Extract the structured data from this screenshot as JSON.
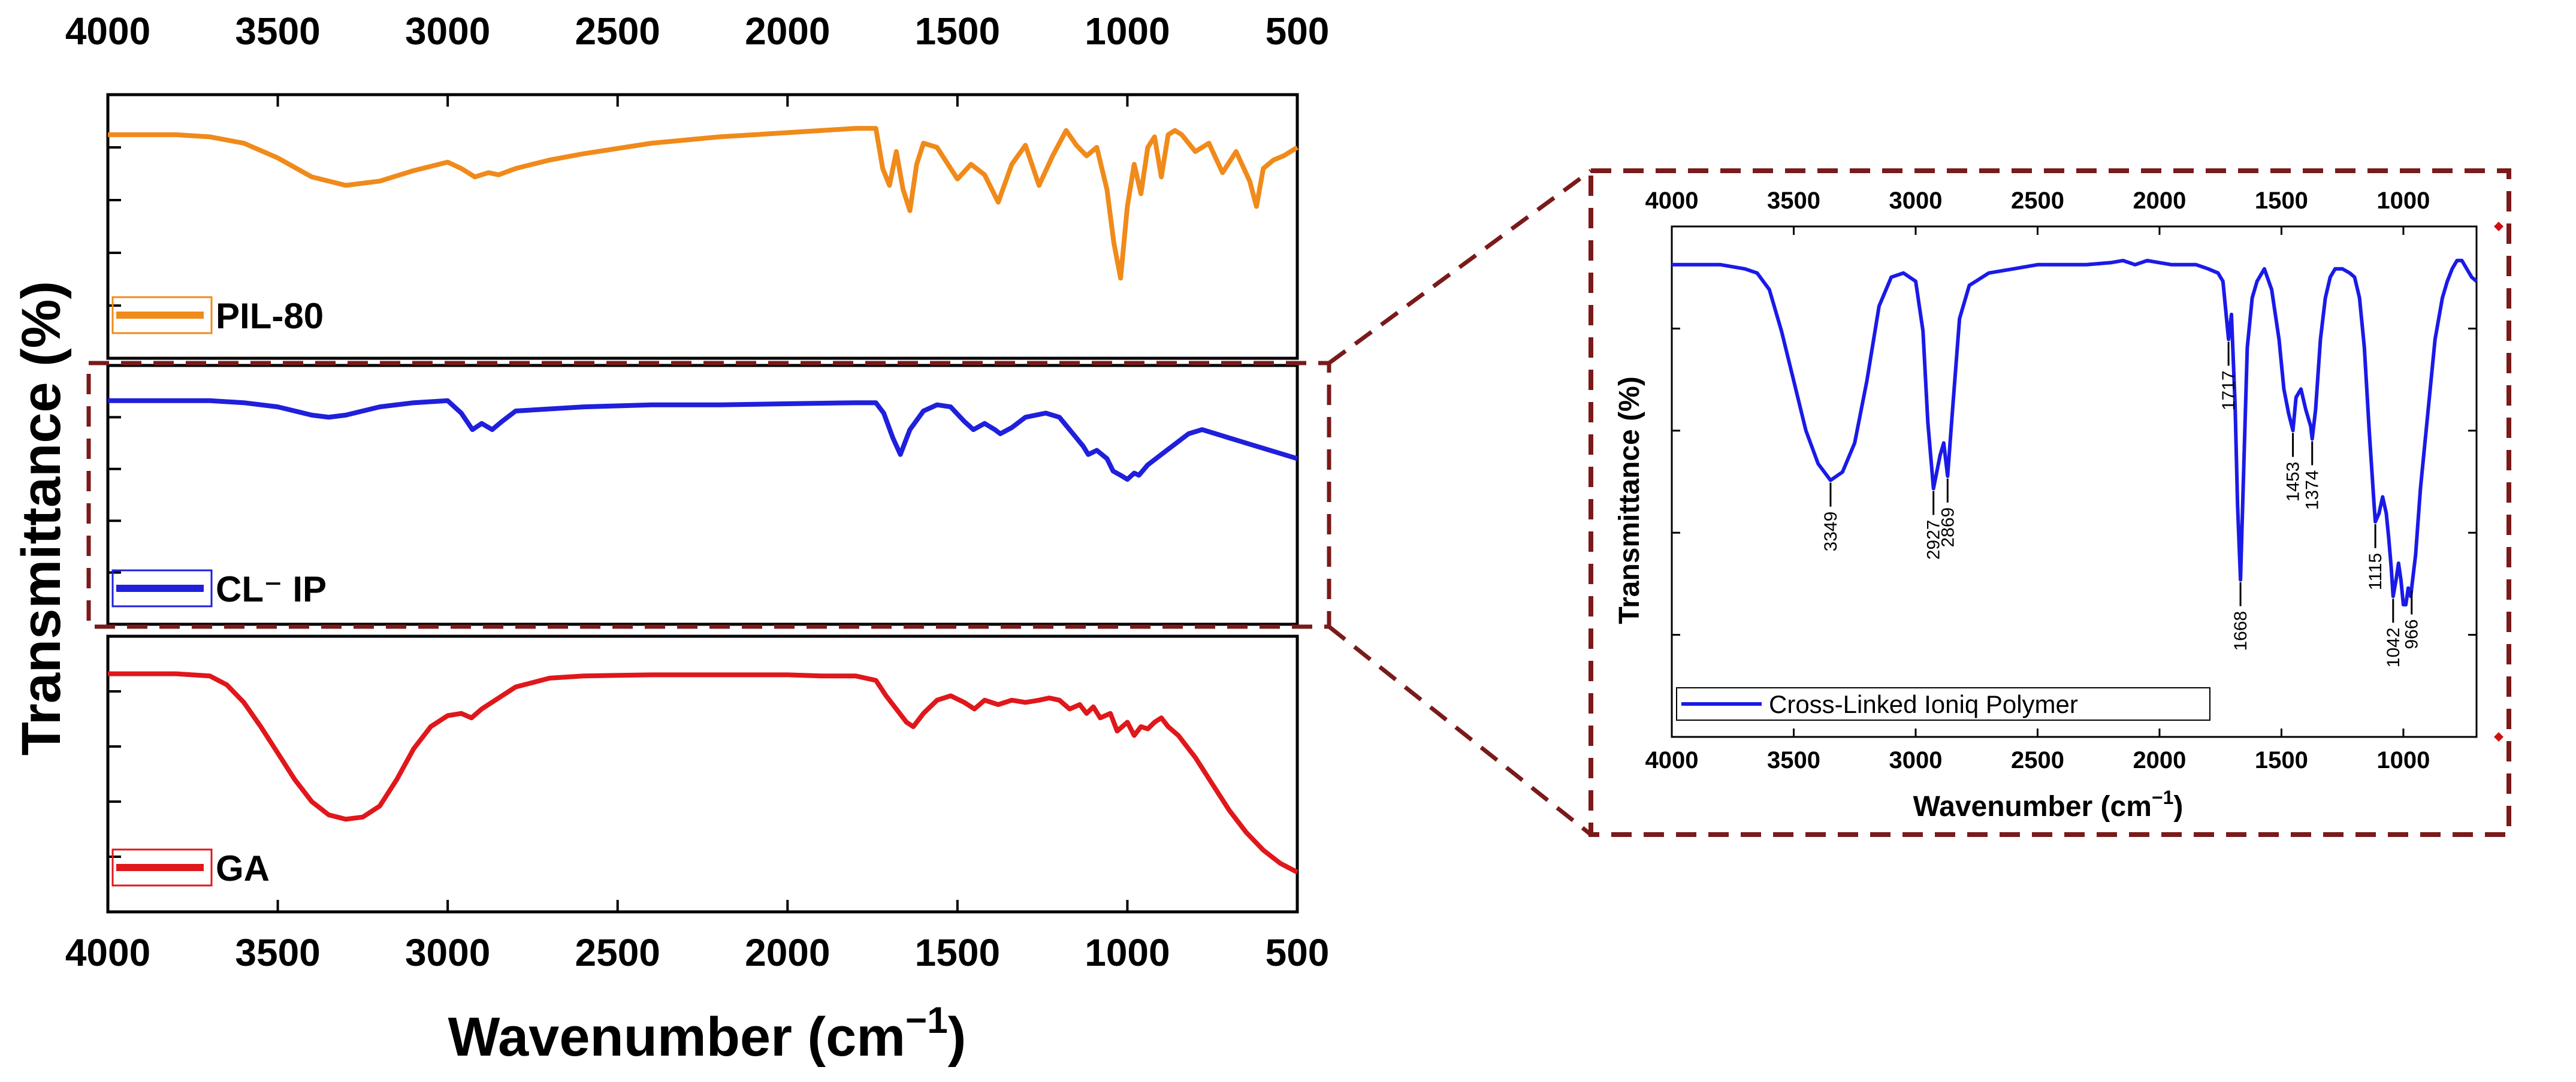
{
  "figure": {
    "main_ylabel": "Transmittance (%)",
    "main_xlabel": "Wavenumber (cm",
    "main_xlabel_sup": "−1",
    "main_xlabel_close": ")",
    "inset_ylabel": "Transmittance (%)",
    "inset_xlabel": "Wavenumber (cm",
    "inset_xlabel_sup": "−1",
    "inset_xlabel_close": ")",
    "colors": {
      "pil80": "#f08a1a",
      "clip": "#1f1fdc",
      "ga": "#e0171b",
      "highlight": "#7a1a1a",
      "inset_line": "#1a1ae8"
    }
  },
  "chart_data": [
    {
      "type": "line",
      "title": "",
      "xlabel": "Wavenumber (cm−1)",
      "ylabel": "Transmittance (%)",
      "xlim": [
        4000,
        500
      ],
      "x_ticks": [
        "4000",
        "3500",
        "3000",
        "2500",
        "2000",
        "1500",
        "1000",
        "500"
      ],
      "series": [
        {
          "name": "PIL-80",
          "legend": "PIL-80",
          "color": "#f08a1a",
          "x": [
            4000,
            3900,
            3800,
            3700,
            3600,
            3500,
            3400,
            3300,
            3200,
            3100,
            3000,
            2960,
            2920,
            2880,
            2850,
            2800,
            2700,
            2600,
            2400,
            2200,
            2000,
            1800,
            1740,
            1720,
            1700,
            1680,
            1660,
            1640,
            1620,
            1600,
            1560,
            1500,
            1460,
            1420,
            1380,
            1340,
            1300,
            1260,
            1220,
            1180,
            1150,
            1120,
            1090,
            1060,
            1040,
            1020,
            1000,
            980,
            960,
            940,
            920,
            900,
            880,
            860,
            840,
            800,
            760,
            720,
            680,
            640,
            620,
            600,
            570,
            540,
            500
          ],
          "y": [
            96,
            96,
            96,
            95,
            92,
            85,
            76,
            72,
            74,
            79,
            83,
            80,
            76,
            78,
            77,
            80,
            84,
            87,
            92,
            95,
            97,
            99,
            99,
            80,
            72,
            88,
            70,
            60,
            82,
            92,
            90,
            75,
            82,
            77,
            64,
            82,
            91,
            72,
            86,
            98,
            91,
            86,
            90,
            70,
            45,
            28,
            62,
            82,
            68,
            90,
            95,
            76,
            96,
            98,
            96,
            88,
            92,
            78,
            88,
            74,
            62,
            80,
            84,
            86,
            90
          ]
        },
        {
          "name": "CL⁻ IP",
          "legend": "CL⁻ IP",
          "color": "#1f1fdc",
          "x": [
            4000,
            3900,
            3800,
            3700,
            3600,
            3500,
            3400,
            3350,
            3300,
            3200,
            3100,
            3000,
            2960,
            2927,
            2900,
            2869,
            2840,
            2800,
            2600,
            2400,
            2200,
            2000,
            1800,
            1740,
            1717,
            1690,
            1668,
            1640,
            1600,
            1560,
            1520,
            1480,
            1453,
            1420,
            1390,
            1374,
            1340,
            1300,
            1240,
            1200,
            1160,
            1130,
            1115,
            1090,
            1060,
            1042,
            1020,
            1000,
            980,
            966,
            940,
            900,
            860,
            820,
            780,
            740,
            700,
            660,
            620,
            580,
            540,
            500
          ],
          "y": [
            98,
            98,
            98,
            98,
            97,
            95,
            91,
            90,
            91,
            95,
            97,
            98,
            92,
            84,
            87,
            84,
            88,
            93,
            95,
            96,
            96,
            96.5,
            97,
            97,
            92,
            80,
            72,
            84,
            93,
            96,
            95,
            88,
            84,
            87,
            84,
            82,
            85,
            90,
            92,
            90,
            82,
            76,
            72,
            74,
            70,
            64,
            62,
            60,
            63,
            62,
            67,
            72,
            77,
            82,
            84,
            82,
            80,
            78,
            76,
            74,
            72,
            70
          ]
        },
        {
          "name": "GA",
          "legend": "GA",
          "color": "#e0171b",
          "x": [
            4000,
            3900,
            3800,
            3700,
            3650,
            3600,
            3550,
            3500,
            3450,
            3400,
            3350,
            3300,
            3250,
            3200,
            3150,
            3100,
            3050,
            3000,
            2960,
            2930,
            2900,
            2850,
            2800,
            2700,
            2600,
            2400,
            2200,
            2000,
            1900,
            1800,
            1740,
            1710,
            1680,
            1650,
            1630,
            1600,
            1560,
            1520,
            1480,
            1450,
            1420,
            1380,
            1340,
            1300,
            1260,
            1230,
            1200,
            1170,
            1140,
            1120,
            1100,
            1080,
            1050,
            1030,
            1000,
            980,
            960,
            940,
            920,
            900,
            880,
            850,
            800,
            750,
            700,
            650,
            600,
            550,
            500
          ],
          "y": [
            98,
            98,
            98,
            97,
            93,
            85,
            74,
            62,
            50,
            40,
            34,
            32,
            33,
            38,
            50,
            64,
            74,
            79,
            80,
            78,
            82,
            87,
            92,
            96,
            97,
            97.5,
            97.5,
            97.5,
            97,
            97,
            95,
            88,
            82,
            76,
            74,
            80,
            86,
            88,
            85,
            82,
            86,
            84,
            86,
            85,
            86,
            87,
            86,
            82,
            84,
            80,
            83,
            78,
            80,
            72,
            76,
            70,
            74,
            73,
            76,
            78,
            74,
            70,
            60,
            48,
            36,
            26,
            18,
            12,
            8
          ]
        }
      ]
    },
    {
      "type": "line",
      "title": "",
      "xlabel": "Wavenumber (cm−1)",
      "ylabel": "Transmittance (%)",
      "xlim": [
        4000,
        700
      ],
      "x_ticks": [
        "4000",
        "3500",
        "3000",
        "2500",
        "2000",
        "1500",
        "1000"
      ],
      "series": [
        {
          "name": "Cross-Linked Ioniq Polymer",
          "legend": "Cross-Linked Ioniq Polymer",
          "color": "#1a1ae8",
          "x": [
            4000,
            3900,
            3800,
            3700,
            3650,
            3600,
            3550,
            3500,
            3450,
            3400,
            3349,
            3300,
            3250,
            3200,
            3150,
            3100,
            3050,
            3000,
            2970,
            2950,
            2927,
            2900,
            2885,
            2869,
            2850,
            2820,
            2780,
            2700,
            2600,
            2500,
            2400,
            2300,
            2200,
            2150,
            2100,
            2050,
            2000,
            1950,
            1900,
            1850,
            1800,
            1760,
            1740,
            1730,
            1717,
            1705,
            1690,
            1680,
            1668,
            1655,
            1640,
            1620,
            1600,
            1570,
            1540,
            1510,
            1490,
            1470,
            1453,
            1440,
            1420,
            1400,
            1390,
            1380,
            1374,
            1360,
            1340,
            1320,
            1300,
            1280,
            1250,
            1220,
            1200,
            1180,
            1160,
            1140,
            1120,
            1115,
            1100,
            1085,
            1070,
            1060,
            1050,
            1042,
            1030,
            1020,
            1010,
            1000,
            990,
            980,
            970,
            966,
            950,
            930,
            900,
            870,
            840,
            820,
            800,
            780,
            760,
            740,
            720,
            700
          ],
          "y": [
            98,
            98,
            98,
            97,
            96,
            92,
            82,
            70,
            58,
            50,
            46,
            48,
            55,
            70,
            88,
            95,
            96,
            94,
            82,
            60,
            44,
            52,
            55,
            47,
            62,
            85,
            93,
            96,
            97,
            98,
            98,
            98,
            98.5,
            99,
            98,
            99,
            98.5,
            98,
            98,
            98,
            97,
            96,
            94,
            88,
            80,
            86,
            64,
            40,
            22,
            48,
            78,
            90,
            94,
            97,
            92,
            80,
            68,
            62,
            58,
            66,
            68,
            63,
            61,
            59,
            56,
            63,
            80,
            90,
            95,
            97,
            97,
            96,
            95,
            90,
            78,
            58,
            40,
            36,
            38,
            42,
            38,
            32,
            25,
            18,
            22,
            26,
            22,
            16,
            16,
            20,
            18,
            20,
            28,
            44,
            62,
            80,
            90,
            94,
            97,
            99,
            99,
            97,
            95,
            94
          ]
        }
      ],
      "annotations": [
        {
          "label": "3349",
          "x": 3349
        },
        {
          "label": "2927",
          "x": 2927
        },
        {
          "label": "2869",
          "x": 2869
        },
        {
          "label": "1717",
          "x": 1717
        },
        {
          "label": "1668",
          "x": 1668
        },
        {
          "label": "1453",
          "x": 1453
        },
        {
          "label": "1374",
          "x": 1374
        },
        {
          "label": "1115",
          "x": 1115
        },
        {
          "label": "1042",
          "x": 1042
        },
        {
          "label": "966",
          "x": 966
        }
      ]
    }
  ]
}
